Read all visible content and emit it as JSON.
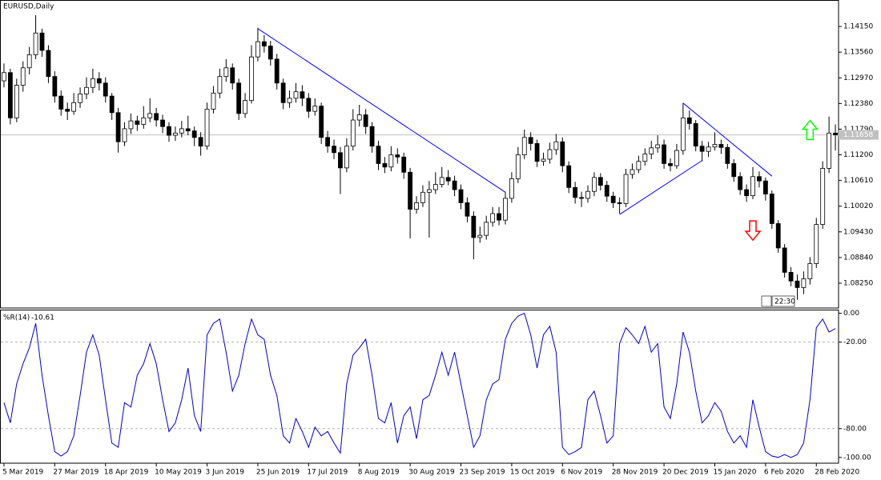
{
  "chart_data": [
    {
      "type": "candlestick",
      "title": "EURUSD,Daily",
      "timer": "22:30",
      "categories": [
        "5 Mar 2019",
        null,
        null,
        null,
        null,
        null,
        null,
        null,
        "27 Mar 2019",
        null,
        null,
        null,
        null,
        null,
        null,
        null,
        "18 Apr 2019",
        null,
        null,
        null,
        null,
        null,
        null,
        null,
        "10 May 2019",
        null,
        null,
        null,
        null,
        null,
        null,
        null,
        "3 Jun 2019",
        null,
        null,
        null,
        null,
        null,
        null,
        null,
        "25 Jun 2019",
        null,
        null,
        null,
        null,
        null,
        null,
        null,
        "17 Jul 2019",
        null,
        null,
        null,
        null,
        null,
        null,
        null,
        "8 Aug 2019",
        null,
        null,
        null,
        null,
        null,
        null,
        null,
        "30 Aug 2019",
        null,
        null,
        null,
        null,
        null,
        null,
        null,
        "23 Sep 2019",
        null,
        null,
        null,
        null,
        null,
        null,
        null,
        "15 Oct 2019",
        null,
        null,
        null,
        null,
        null,
        null,
        null,
        "6 Nov 2019",
        null,
        null,
        null,
        null,
        null,
        null,
        null,
        "28 Nov 2019",
        null,
        null,
        null,
        null,
        null,
        null,
        null,
        "20 Dec 2019",
        null,
        null,
        null,
        null,
        null,
        null,
        null,
        "15 Jan 2020",
        null,
        null,
        null,
        null,
        null,
        null,
        null,
        "6 Feb 2020",
        null,
        null,
        null,
        null,
        null,
        null,
        null,
        "28 Feb 2020",
        null,
        null,
        null
      ],
      "ohlc": [
        [
          1.129,
          1.133,
          1.1275,
          1.1309
        ],
        [
          1.1309,
          1.1318,
          1.119,
          1.1205
        ],
        [
          1.1205,
          1.1295,
          1.1195,
          1.128
        ],
        [
          1.128,
          1.1335,
          1.1265,
          1.132
        ],
        [
          1.132,
          1.1368,
          1.1305,
          1.135
        ],
        [
          1.135,
          1.1441,
          1.134,
          1.14
        ],
        [
          1.14,
          1.141,
          1.1345,
          1.136
        ],
        [
          1.136,
          1.1372,
          1.1285,
          1.13
        ],
        [
          1.13,
          1.1312,
          1.124,
          1.1255
        ],
        [
          1.1255,
          1.1268,
          1.121,
          1.1225
        ],
        [
          1.1225,
          1.124,
          1.12,
          1.122
        ],
        [
          1.122,
          1.1262,
          1.1212,
          1.124
        ],
        [
          1.124,
          1.1275,
          1.1228,
          1.126
        ],
        [
          1.126,
          1.1298,
          1.1248,
          1.1275
        ],
        [
          1.1275,
          1.1318,
          1.1262,
          1.1295
        ],
        [
          1.1295,
          1.131,
          1.1268,
          1.1285
        ],
        [
          1.1285,
          1.1298,
          1.124,
          1.1255
        ],
        [
          1.1255,
          1.1262,
          1.12,
          1.1217
        ],
        [
          1.1217,
          1.1228,
          1.1125,
          1.115
        ],
        [
          1.115,
          1.1195,
          1.114,
          1.118
        ],
        [
          1.118,
          1.1215,
          1.1168,
          1.1198
        ],
        [
          1.1198,
          1.121,
          1.1175,
          1.119
        ],
        [
          1.119,
          1.1232,
          1.118,
          1.1205
        ],
        [
          1.1205,
          1.125,
          1.1195,
          1.1215
        ],
        [
          1.1215,
          1.1228,
          1.1185,
          1.12
        ],
        [
          1.12,
          1.1212,
          1.117,
          1.1185
        ],
        [
          1.1185,
          1.1195,
          1.115,
          1.1165
        ],
        [
          1.1165,
          1.1185,
          1.1152,
          1.117
        ],
        [
          1.117,
          1.1198,
          1.116,
          1.118
        ],
        [
          1.118,
          1.121,
          1.1165,
          1.1175
        ],
        [
          1.1175,
          1.1185,
          1.114,
          1.116
        ],
        [
          1.116,
          1.1172,
          1.1118,
          1.114
        ],
        [
          1.114,
          1.124,
          1.1132,
          1.1225
        ],
        [
          1.1225,
          1.1278,
          1.1215,
          1.1262
        ],
        [
          1.1262,
          1.1318,
          1.125,
          1.13
        ],
        [
          1.13,
          1.134,
          1.1288,
          1.132
        ],
        [
          1.132,
          1.133,
          1.127,
          1.1285
        ],
        [
          1.1285,
          1.1295,
          1.12,
          1.1215
        ],
        [
          1.1215,
          1.1262,
          1.1205,
          1.1245
        ],
        [
          1.1245,
          1.1372,
          1.1238,
          1.1345
        ],
        [
          1.1345,
          1.1412,
          1.1335,
          1.138
        ],
        [
          1.138,
          1.1395,
          1.1355,
          1.137
        ],
        [
          1.137,
          1.1382,
          1.1325,
          1.134
        ],
        [
          1.134,
          1.1352,
          1.127,
          1.1285
        ],
        [
          1.1285,
          1.1295,
          1.1225,
          1.124
        ],
        [
          1.124,
          1.1268,
          1.1228,
          1.125
        ],
        [
          1.125,
          1.1285,
          1.124,
          1.1265
        ],
        [
          1.1265,
          1.128,
          1.1232,
          1.125
        ],
        [
          1.125,
          1.1262,
          1.1205,
          1.122
        ],
        [
          1.122,
          1.125,
          1.121,
          1.1232
        ],
        [
          1.1232,
          1.124,
          1.1145,
          1.116
        ],
        [
          1.116,
          1.1175,
          1.1125,
          1.114
        ],
        [
          1.114,
          1.1155,
          1.111,
          1.1125
        ],
        [
          1.1125,
          1.1138,
          1.103,
          1.109
        ],
        [
          1.109,
          1.1158,
          1.108,
          1.114
        ],
        [
          1.114,
          1.1225,
          1.113,
          1.12
        ],
        [
          1.12,
          1.1235,
          1.1185,
          1.1212
        ],
        [
          1.1212,
          1.1225,
          1.1168,
          1.1185
        ],
        [
          1.1185,
          1.1195,
          1.1125,
          1.114
        ],
        [
          1.114,
          1.1152,
          1.1085,
          1.11
        ],
        [
          1.11,
          1.1115,
          1.1078,
          1.1092
        ],
        [
          1.1092,
          1.114,
          1.1082,
          1.112
        ],
        [
          1.112,
          1.1135,
          1.11,
          1.1115
        ],
        [
          1.1115,
          1.1125,
          1.1065,
          1.108
        ],
        [
          1.108,
          1.109,
          1.0928,
          1.0995
        ],
        [
          1.0995,
          1.1025,
          1.0985,
          1.101
        ],
        [
          1.101,
          1.105,
          1.1,
          1.1034
        ],
        [
          1.1034,
          1.106,
          1.093,
          1.104
        ],
        [
          1.104,
          1.108,
          1.103,
          1.1052
        ],
        [
          1.1052,
          1.1092,
          1.1045,
          1.1068
        ],
        [
          1.1068,
          1.1085,
          1.105,
          1.106
        ],
        [
          1.106,
          1.1072,
          1.1025,
          1.104
        ],
        [
          1.104,
          1.1052,
          1.0995,
          1.101
        ],
        [
          1.101,
          1.1022,
          1.0965,
          1.0979
        ],
        [
          1.0979,
          1.099,
          1.088,
          1.093
        ],
        [
          1.093,
          1.0955,
          1.0918,
          1.0935
        ],
        [
          1.0935,
          1.098,
          1.0925,
          1.0965
        ],
        [
          1.0965,
          1.1,
          1.0955,
          1.0985
        ],
        [
          1.0985,
          1.1,
          1.0958,
          1.097
        ],
        [
          1.097,
          1.1035,
          1.096,
          1.102
        ],
        [
          1.102,
          1.108,
          1.101,
          1.1065
        ],
        [
          1.1065,
          1.1138,
          1.1055,
          1.112
        ],
        [
          1.112,
          1.1178,
          1.111,
          1.116
        ],
        [
          1.116,
          1.1172,
          1.113,
          1.1146
        ],
        [
          1.1146,
          1.1155,
          1.1092,
          1.1105
        ],
        [
          1.1105,
          1.1125,
          1.1095,
          1.111
        ],
        [
          1.111,
          1.1148,
          1.11,
          1.1132
        ],
        [
          1.1132,
          1.1168,
          1.112,
          1.115
        ],
        [
          1.115,
          1.116,
          1.108,
          1.1095
        ],
        [
          1.1095,
          1.1105,
          1.1032,
          1.1045
        ],
        [
          1.1045,
          1.1058,
          1.1008,
          1.1022
        ],
        [
          1.1022,
          1.1035,
          1.1,
          1.102
        ],
        [
          1.102,
          1.105,
          1.101,
          1.1036
        ],
        [
          1.1036,
          1.108,
          1.1025,
          1.1068
        ],
        [
          1.1068,
          1.1078,
          1.1038,
          1.105
        ],
        [
          1.105,
          1.106,
          1.1012,
          1.1025
        ],
        [
          1.1025,
          1.1035,
          1.0998,
          1.101
        ],
        [
          1.101,
          1.1022,
          1.0985,
          1.1008
        ],
        [
          1.1008,
          1.1088,
          1.1,
          1.1075
        ],
        [
          1.1075,
          1.11,
          1.1065,
          1.1086
        ],
        [
          1.1086,
          1.1118,
          1.1078,
          1.1105
        ],
        [
          1.1105,
          1.1135,
          1.1095,
          1.1122
        ],
        [
          1.1122,
          1.1152,
          1.111,
          1.1136
        ],
        [
          1.1136,
          1.1165,
          1.1125,
          1.1143
        ],
        [
          1.1143,
          1.1155,
          1.1088,
          1.11
        ],
        [
          1.11,
          1.1112,
          1.1082,
          1.1095
        ],
        [
          1.1095,
          1.1145,
          1.1088,
          1.113
        ],
        [
          1.113,
          1.1239,
          1.112,
          1.1205
        ],
        [
          1.1205,
          1.1222,
          1.1178,
          1.1192
        ],
        [
          1.1192,
          1.12,
          1.1128,
          1.114
        ],
        [
          1.114,
          1.1152,
          1.1105,
          1.1128
        ],
        [
          1.1128,
          1.115,
          1.1115,
          1.1138
        ],
        [
          1.1138,
          1.1172,
          1.113,
          1.1144
        ],
        [
          1.1144,
          1.1155,
          1.1122,
          1.1137
        ],
        [
          1.1137,
          1.1145,
          1.1088,
          1.11
        ],
        [
          1.11,
          1.111,
          1.1058,
          1.107
        ],
        [
          1.107,
          1.108,
          1.1028,
          1.104
        ],
        [
          1.104,
          1.1052,
          1.1012,
          1.1026
        ],
        [
          1.1026,
          1.1092,
          1.1018,
          1.107
        ],
        [
          1.107,
          1.1082,
          1.1045,
          1.106
        ],
        [
          1.106,
          1.1068,
          1.1015,
          1.103
        ],
        [
          1.103,
          1.1038,
          1.095,
          1.0962
        ],
        [
          1.0962,
          1.097,
          1.0895,
          1.0906
        ],
        [
          1.0906,
          1.0915,
          1.0838,
          1.085
        ],
        [
          1.085,
          1.0862,
          1.0818,
          1.083
        ],
        [
          1.083,
          1.0845,
          1.0787,
          1.0815
        ],
        [
          1.0815,
          1.0852,
          1.08,
          1.0835
        ],
        [
          1.0835,
          1.0885,
          1.0822,
          1.087
        ],
        [
          1.087,
          1.0975,
          1.086,
          1.096
        ],
        [
          1.096,
          1.1105,
          1.095,
          1.1089
        ],
        [
          1.1089,
          1.1208,
          1.1078,
          1.117
        ],
        [
          1.117,
          1.119,
          1.113,
          1.11658
        ]
      ],
      "bull_color": "#ffffff",
      "bear_color": "#000000",
      "ylim": [
        1.0768,
        1.1474
      ],
      "yticks": [
        {
          "value": 1.1415,
          "label": "1.14150"
        },
        {
          "value": 1.1356,
          "label": "1.13560"
        },
        {
          "value": 1.1297,
          "label": "1.12970"
        },
        {
          "value": 1.1238,
          "label": "1.12380"
        },
        {
          "value": 1.1179,
          "label": "1.11790"
        },
        {
          "value": 1.112,
          "label": "1.11200"
        },
        {
          "value": 1.1061,
          "label": "1.10610"
        },
        {
          "value": 1.1002,
          "label": "1.10020"
        },
        {
          "value": 1.0943,
          "label": "1.09430"
        },
        {
          "value": 1.0884,
          "label": "1.08840"
        },
        {
          "value": 1.0825,
          "label": "1.08250"
        }
      ],
      "trendline_color": "#0000ff",
      "trendlines": [
        {
          "from": [
            40,
            1.141
          ],
          "to": [
            79,
            1.1034
          ]
        },
        {
          "from": [
            107,
            1.1239
          ],
          "to": [
            121,
            1.1071
          ]
        },
        {
          "from": [
            97,
            1.0983
          ],
          "to": [
            110,
            1.1107
          ]
        }
      ],
      "arrows": [
        {
          "direction": "up",
          "x": 127,
          "price": 1.1177,
          "color": "#00ff00"
        },
        {
          "direction": "down",
          "x": 118,
          "price": 1.0946,
          "color": "#ff0000"
        }
      ]
    },
    {
      "type": "line",
      "title": "%R(14)",
      "color": "#0000c8",
      "values": [
        -62,
        -76,
        -49,
        -35,
        -24,
        -7,
        -43,
        -71,
        -96,
        -99,
        -96,
        -85,
        -57,
        -27,
        -15,
        -29,
        -60,
        -90,
        -93,
        -62,
        -65,
        -43,
        -35,
        -21,
        -35,
        -60,
        -82,
        -76,
        -60,
        -38,
        -71,
        -82,
        -15,
        -7,
        -4,
        -27,
        -54,
        -43,
        -21,
        -4,
        -15,
        -18,
        -43,
        -57,
        -85,
        -90,
        -73,
        -82,
        -93,
        -79,
        -85,
        -82,
        -90,
        -97,
        -49,
        -29,
        -24,
        -18,
        -43,
        -73,
        -76,
        -62,
        -90,
        -71,
        -65,
        -87,
        -60,
        -57,
        -43,
        -27,
        -43,
        -27,
        -49,
        -71,
        -93,
        -85,
        -60,
        -49,
        -46,
        -18,
        -7,
        -2,
        0,
        -15,
        -38,
        -15,
        -9,
        -27,
        -93,
        -98,
        -96,
        -93,
        -60,
        -54,
        -71,
        -90,
        -85,
        -21,
        -10,
        -15,
        -21,
        -9,
        -27,
        -21,
        -65,
        -73,
        -49,
        -13,
        -27,
        -54,
        -76,
        -71,
        -62,
        -68,
        -82,
        -90,
        -85,
        -93,
        -60,
        -79,
        -96,
        -99,
        -100,
        -98,
        -100,
        -98,
        -90,
        -60,
        -10,
        -4,
        -13,
        -10.61
      ],
      "ylim": [
        -104,
        2
      ],
      "yticks": [
        {
          "value": 0,
          "label": "0.00"
        },
        {
          "value": -20,
          "label": "-20.00"
        },
        {
          "value": -80,
          "label": "-80.00"
        },
        {
          "value": -100,
          "label": "-100.00"
        }
      ],
      "levels": [
        -20,
        -80
      ]
    }
  ]
}
